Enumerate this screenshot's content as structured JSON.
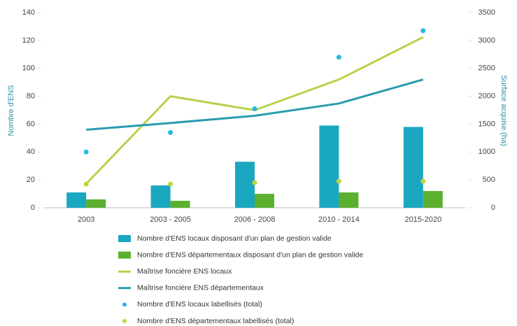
{
  "chart_data": {
    "type": "combo",
    "y_label": "Nombre d'ENS",
    "y2_label": "Surface acquise (ha)",
    "categories": [
      "2003",
      "2003 - 2005",
      "2006 - 2008",
      "2010 - 2014",
      "2015-2020"
    ],
    "ylim": [
      0,
      140
    ],
    "yticks": [
      0,
      20,
      40,
      60,
      80,
      100,
      120,
      140
    ],
    "y2lim": [
      0,
      3500
    ],
    "y2ticks": [
      0,
      500,
      1000,
      1500,
      2000,
      2500,
      3000,
      3500
    ],
    "grid": false,
    "legend": "bottom",
    "series": [
      {
        "name": "Nombre d'ENS locaux disposant d'un plan de gestion valide",
        "type": "bar",
        "color": "#1aa7c0",
        "values": [
          11,
          16,
          33,
          59,
          58
        ]
      },
      {
        "name": "Nombre d'ENS départementaux disposant d'un plan de gestion valide",
        "type": "bar",
        "color": "#5bb030",
        "values": [
          6,
          5,
          10,
          11,
          12
        ]
      },
      {
        "name": "Maîtrise foncière ENS locaux",
        "type": "line",
        "axis": "y2",
        "color": "#b6d24a",
        "values": [
          430,
          2000,
          1750,
          2300,
          3060
        ]
      },
      {
        "name": "Maîtrise foncière ENS départementaux",
        "type": "line",
        "axis": "y2",
        "color": "#2a9bb0",
        "values": [
          1400,
          1520,
          1650,
          1870,
          2300
        ]
      },
      {
        "name": "Nombre d'ENS locaux labellisés (total)",
        "type": "scatter",
        "color": "#2cb5e6",
        "values": [
          40,
          54,
          71,
          108,
          127
        ]
      },
      {
        "name": "Nombre d'ENS départementaux labellisés (total)",
        "type": "scatter",
        "color": "#c3d43a",
        "values": [
          17,
          17,
          18,
          19,
          19
        ]
      }
    ]
  }
}
